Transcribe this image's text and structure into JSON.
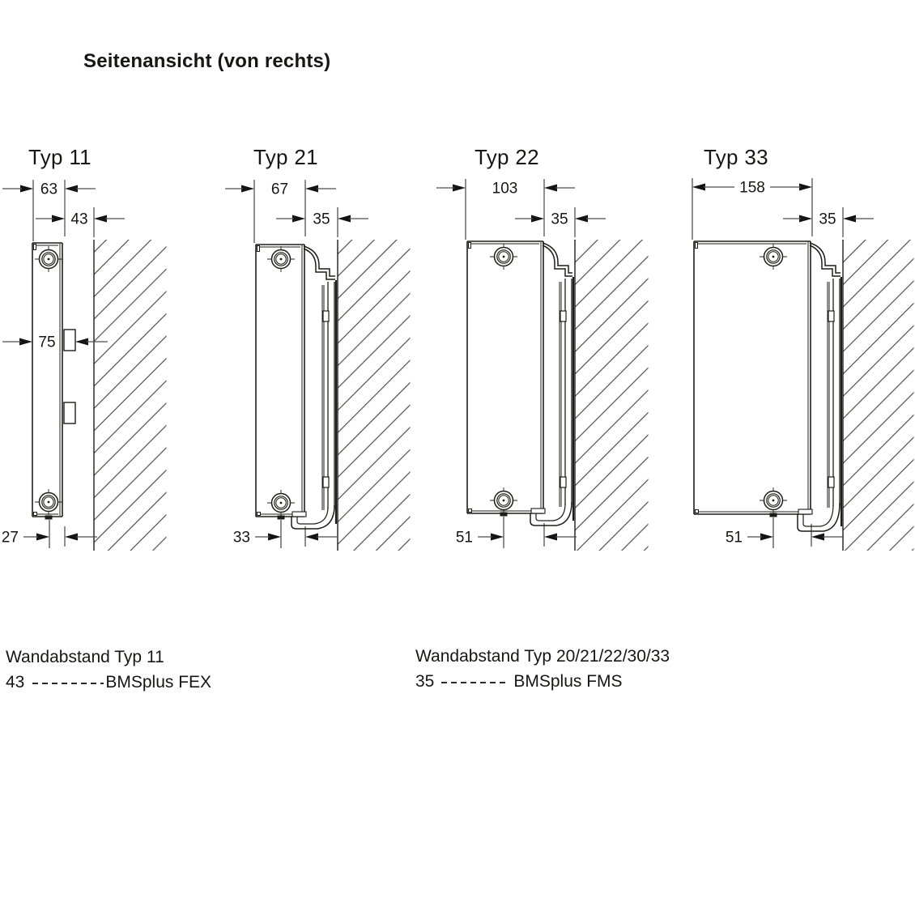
{
  "title": "Seitenansicht (von rechts)",
  "radiators": [
    {
      "id": "typ11",
      "label": "Typ 11",
      "depth": "63",
      "wall_distance": "43",
      "depth_total": "75",
      "bottom_offset": "27"
    },
    {
      "id": "typ21",
      "label": "Typ 21",
      "depth": "67",
      "wall_distance": "35",
      "bottom_offset": "33"
    },
    {
      "id": "typ22",
      "label": "Typ 22",
      "depth": "103",
      "wall_distance": "35",
      "bottom_offset": "51"
    },
    {
      "id": "typ33",
      "label": "Typ 33",
      "depth": "158",
      "wall_distance": "35",
      "bottom_offset": "51"
    }
  ],
  "legend": [
    {
      "title": "Wandabstand Typ 11",
      "value": "43",
      "bracket": "BMSplus FEX"
    },
    {
      "title": "Wandabstand Typ 20/21/22/30/33",
      "value": "35",
      "bracket": "BMSplus FMS"
    }
  ],
  "colors": {
    "ink": "#1d1d1b",
    "dim_line": "#4d4d4d",
    "hatch": "#2e2e2c",
    "background": "#ffffff"
  }
}
